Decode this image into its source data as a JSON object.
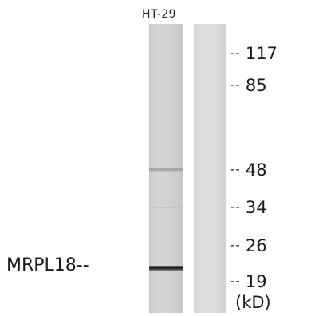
{
  "lane_label": "HT-29",
  "protein_label": "MRPL18--",
  "markers": [
    {
      "dash": "--",
      "value": "117"
    },
    {
      "dash": "--",
      "value": "85"
    },
    {
      "dash": "--",
      "value": "48"
    },
    {
      "dash": "--",
      "value": "34"
    },
    {
      "dash": "--",
      "value": "26"
    },
    {
      "dash": "--",
      "value": "19"
    }
  ],
  "unit_label": "(kD)"
}
